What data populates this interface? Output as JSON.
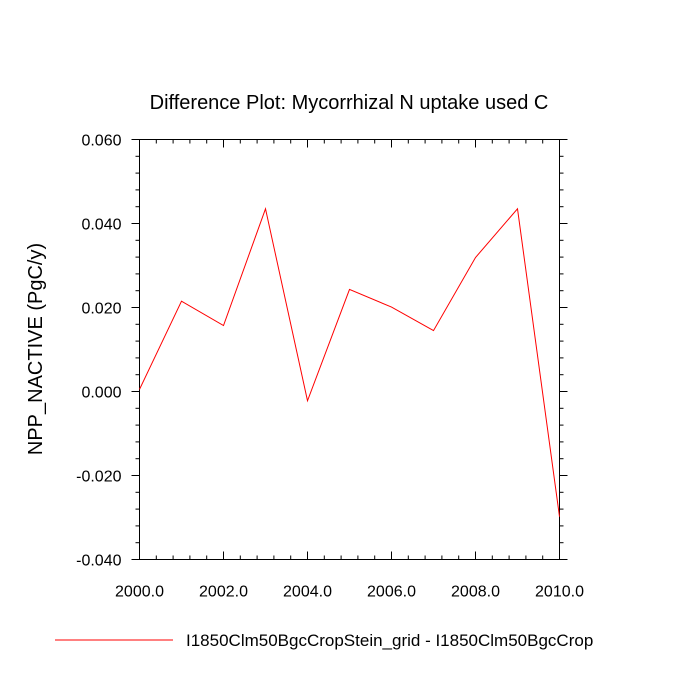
{
  "chart_data": {
    "type": "line",
    "title": "Difference Plot: Mycorrhizal N uptake used C",
    "xlabel": "",
    "ylabel": "NPP_NACTIVE  (PgC/y)",
    "xlim": [
      2000,
      2010
    ],
    "ylim": [
      -0.04,
      0.06
    ],
    "x_ticks": [
      "2000.0",
      "2002.0",
      "2004.0",
      "2006.0",
      "2008.0",
      "2010.0"
    ],
    "y_ticks": [
      "-0.040",
      "-0.020",
      "0.000",
      "0.020",
      "0.040",
      "0.060"
    ],
    "grid": false,
    "legend_position": "bottom",
    "series": [
      {
        "name": "I1850Clm50BgcCropStein_grid - I1850Clm50BgcCrop",
        "color": "#ff0000",
        "x": [
          2000,
          2001,
          2002,
          2003,
          2004,
          2005,
          2006,
          2007,
          2008,
          2009,
          2010
        ],
        "values": [
          0.0005,
          0.0215,
          0.0157,
          0.0435,
          -0.0022,
          0.0243,
          0.0201,
          0.0145,
          0.0319,
          0.0435,
          -0.0298
        ]
      }
    ]
  }
}
